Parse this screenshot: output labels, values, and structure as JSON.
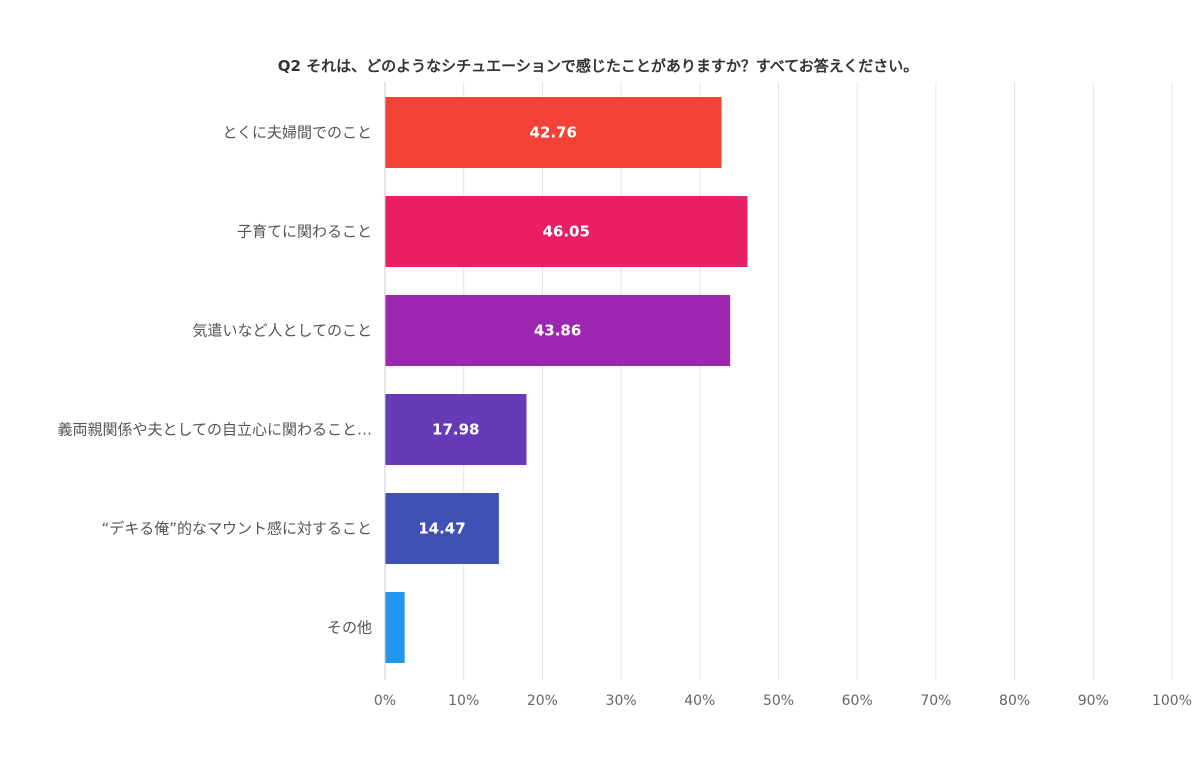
{
  "chart_data": {
    "type": "bar",
    "orientation": "horizontal",
    "title": "Q2 それは、どのようなシチュエーションで感じたことがありますか？すべてお答えください。",
    "xlabel": "",
    "ylabel": "",
    "categories": [
      "とくに夫婦間でのこと",
      "子育てに関わること",
      "気遣いなど人としてのこと",
      "義両親関係や夫としての自立心に関わること…",
      "“デキる俺”的なマウント感に対すること",
      "その他"
    ],
    "values": [
      42.76,
      46.05,
      43.86,
      17.98,
      14.47,
      2.5
    ],
    "data_labels": [
      "42.76",
      "46.05",
      "43.86",
      "17.98",
      "14.47",
      ""
    ],
    "colors": [
      "#f44336",
      "#e91e63",
      "#9c27b0",
      "#673ab7",
      "#3f51b5",
      "#2196f3"
    ],
    "xlim": [
      0,
      100
    ],
    "xticks": [
      "0%",
      "10%",
      "20%",
      "30%",
      "40%",
      "50%",
      "60%",
      "70%",
      "80%",
      "90%",
      "100%"
    ],
    "grid": true,
    "legend": "none"
  }
}
